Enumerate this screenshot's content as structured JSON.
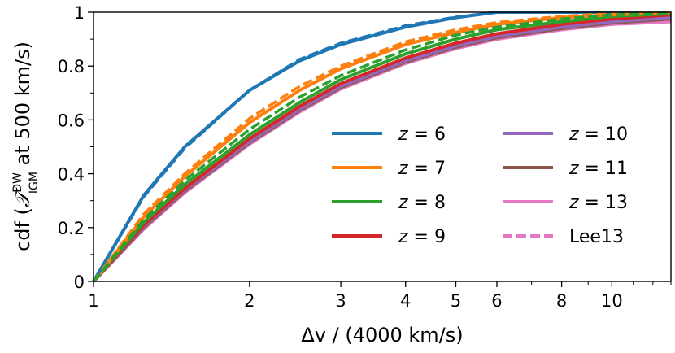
{
  "chart_data": {
    "type": "line",
    "title": "",
    "xlabel": "Δv / (4000 km/s)",
    "ylabel": "cdf (𝒯_IGM^DW at 500 km/s)",
    "ylabel_parts": {
      "prefix": "cdf (",
      "symbol": "𝒯",
      "sup": "DW",
      "sub": "IGM",
      "suffix": " at 500 km/s)"
    },
    "xscale": "log",
    "xlim": [
      1,
      13
    ],
    "ylim": [
      0,
      1
    ],
    "grid": false,
    "legend": "center-right",
    "x_ticks": [
      {
        "value": 1,
        "label": "1"
      },
      {
        "value": 2,
        "label": "2"
      },
      {
        "value": 3,
        "label": "3"
      },
      {
        "value": 4,
        "label": "4"
      },
      {
        "value": 5,
        "label": "5"
      },
      {
        "value": 6,
        "label": "6"
      },
      {
        "value": 8,
        "label": "8"
      },
      {
        "value": 10,
        "label": "10"
      }
    ],
    "x_minor_ticks": [
      7,
      9,
      11,
      12,
      13
    ],
    "y_ticks": [
      {
        "value": 0,
        "label": "0"
      },
      {
        "value": 0.2,
        "label": "0.2"
      },
      {
        "value": 0.4,
        "label": "0.4"
      },
      {
        "value": 0.6,
        "label": "0.6"
      },
      {
        "value": 0.8,
        "label": "0.8"
      },
      {
        "value": 1,
        "label": "1"
      }
    ],
    "x": [
      1,
      1.25,
      1.5,
      2,
      2.5,
      3,
      4,
      5,
      6,
      8,
      10,
      13
    ],
    "series": [
      {
        "name": "z = 6",
        "z": "6",
        "color": "#1f77b4",
        "values": [
          0.0,
          0.32,
          0.5,
          0.71,
          0.82,
          0.88,
          0.945,
          0.98,
          1.0,
          1.0,
          1.0,
          1.0
        ]
      },
      {
        "name": "z = 7",
        "z": "7",
        "color": "#ff7f0e",
        "values": [
          0.0,
          0.24,
          0.39,
          0.59,
          0.71,
          0.79,
          0.88,
          0.925,
          0.955,
          0.98,
          0.99,
          1.0
        ]
      },
      {
        "name": "z = 8",
        "z": "8",
        "color": "#2ca02c",
        "values": [
          0.0,
          0.22,
          0.36,
          0.545,
          0.665,
          0.75,
          0.845,
          0.9,
          0.935,
          0.965,
          0.985,
          0.995
        ]
      },
      {
        "name": "z = 9",
        "z": "9",
        "color": "#d62728",
        "values": [
          0.0,
          0.21,
          0.345,
          0.53,
          0.65,
          0.735,
          0.83,
          0.885,
          0.92,
          0.955,
          0.975,
          0.99
        ]
      },
      {
        "name": "z = 10",
        "z": "10",
        "color": "#9467bd",
        "values": [
          0.0,
          0.205,
          0.34,
          0.52,
          0.64,
          0.725,
          0.82,
          0.875,
          0.91,
          0.945,
          0.965,
          0.98
        ]
      },
      {
        "name": "z = 11",
        "z": "11",
        "color": "#8c564b",
        "values": [
          0.0,
          0.2,
          0.335,
          0.515,
          0.635,
          0.72,
          0.815,
          0.87,
          0.905,
          0.94,
          0.96,
          0.975
        ]
      },
      {
        "name": "z = 13",
        "z": "13",
        "color": "#e377c2",
        "values": [
          0.0,
          0.195,
          0.33,
          0.51,
          0.63,
          0.715,
          0.81,
          0.865,
          0.9,
          0.935,
          0.955,
          0.965
        ]
      }
    ],
    "dashed_series": [
      {
        "for": "z = 6",
        "color": "#1f77b4",
        "values": [
          0.0,
          0.315,
          0.495,
          0.71,
          0.825,
          0.885,
          0.95,
          0.982,
          1.0,
          1.0,
          1.0,
          1.0
        ]
      },
      {
        "for": "z = 7",
        "color": "#ff7f0e",
        "values": [
          0.0,
          0.25,
          0.4,
          0.605,
          0.725,
          0.8,
          0.89,
          0.935,
          0.962,
          0.985,
          0.995,
          1.0
        ]
      },
      {
        "for": "z = 8",
        "color": "#2ca02c",
        "values": [
          0.0,
          0.23,
          0.375,
          0.565,
          0.685,
          0.765,
          0.86,
          0.915,
          0.945,
          0.975,
          0.99,
          0.998
        ]
      }
    ],
    "legend_entries": [
      {
        "label": "Lee13",
        "color": "#e377c2",
        "style": "dashed"
      }
    ]
  }
}
